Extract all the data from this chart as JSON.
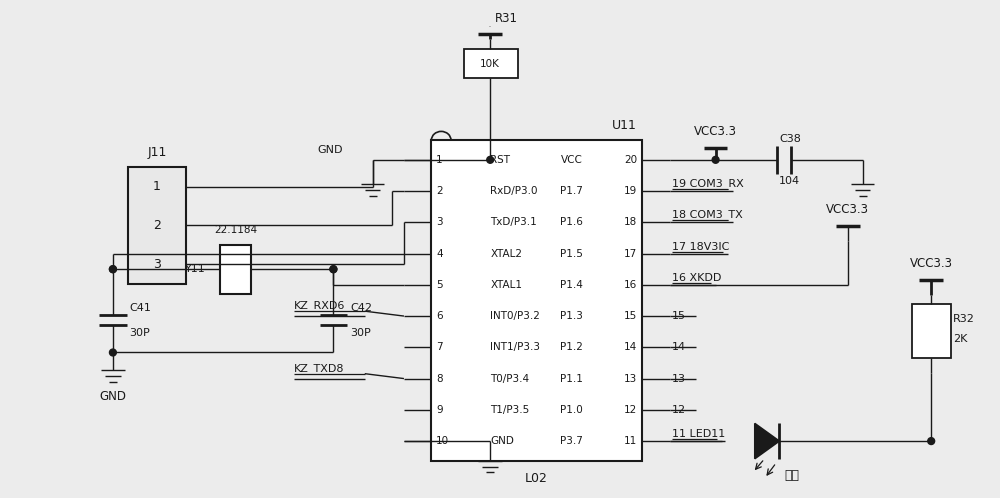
{
  "bg_color": "#ececec",
  "line_color": "#1a1a1a",
  "figsize": [
    10.0,
    4.98
  ],
  "dpi": 100,
  "left_labels": [
    "RST",
    "RxD/P3.0",
    "TxD/P3.1",
    "XTAL2",
    "XTAL1",
    "INT0/P3.2",
    "INT1/P3.3",
    "T0/P3.4",
    "T1/P3.5",
    "GND"
  ],
  "left_nums": [
    "1",
    "2",
    "3",
    "4",
    "5",
    "6",
    "7",
    "8",
    "9",
    "10"
  ],
  "right_labels": [
    "VCC",
    "P1.7",
    "P1.6",
    "P1.5",
    "P1.4",
    "P1.3",
    "P1.2",
    "P1.1",
    "P1.0",
    "P3.7"
  ],
  "right_nums": [
    "20",
    "19",
    "18",
    "17",
    "16",
    "15",
    "14",
    "13",
    "12",
    "11"
  ],
  "right_signals": [
    "",
    "COM3_RX",
    "COM3_TX",
    "18V3IC",
    "XKDD",
    "",
    "",
    "",
    "",
    "LED11"
  ]
}
